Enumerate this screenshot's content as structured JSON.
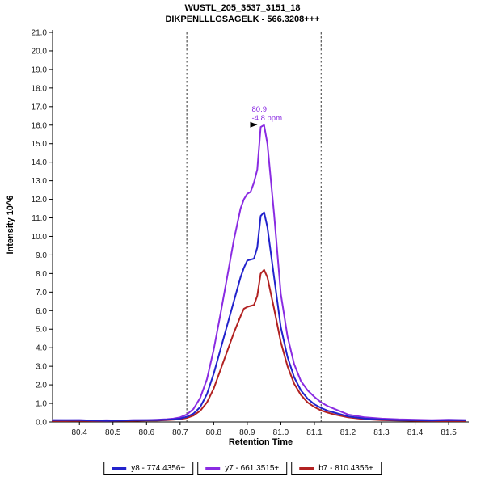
{
  "chart_data": {
    "type": "line",
    "title": "WUSTL_205_3537_3151_18",
    "subtitle": "DIKPENLLLGSAGELK - 566.3208+++",
    "xlabel": "Retention Time",
    "ylabel": "Intensity 10^6",
    "xlim": [
      80.32,
      81.56
    ],
    "ylim": [
      0,
      21
    ],
    "y_tick_step": 1,
    "x_ticks": [
      80.4,
      80.5,
      80.6,
      80.7,
      80.8,
      80.9,
      81.0,
      81.1,
      81.2,
      81.3,
      81.4,
      81.5
    ],
    "grid": false,
    "legend_position": "bottom",
    "axis_color": "#000000",
    "boundary_color": "#333333",
    "x": [
      80.32,
      80.36,
      80.4,
      80.44,
      80.48,
      80.52,
      80.56,
      80.6,
      80.63,
      80.66,
      80.68,
      80.7,
      80.72,
      80.74,
      80.76,
      80.78,
      80.8,
      80.82,
      80.84,
      80.86,
      80.88,
      80.89,
      80.9,
      80.91,
      80.92,
      80.93,
      80.94,
      80.95,
      80.96,
      80.98,
      81.0,
      81.02,
      81.04,
      81.06,
      81.08,
      81.1,
      81.12,
      81.14,
      81.16,
      81.2,
      81.25,
      81.3,
      81.35,
      81.4,
      81.45,
      81.5,
      81.55
    ],
    "series": [
      {
        "name": "y8",
        "legend_label": "y8 - 774.4356+",
        "color": "#2222cc",
        "values": [
          0.1,
          0.1,
          0.1,
          0.08,
          0.06,
          0.08,
          0.09,
          0.1,
          0.1,
          0.12,
          0.14,
          0.18,
          0.28,
          0.45,
          0.8,
          1.5,
          2.6,
          3.9,
          5.2,
          6.5,
          7.8,
          8.3,
          8.7,
          8.75,
          8.8,
          9.4,
          11.1,
          11.3,
          10.5,
          7.8,
          5.1,
          3.5,
          2.4,
          1.7,
          1.25,
          0.95,
          0.75,
          0.6,
          0.5,
          0.3,
          0.18,
          0.13,
          0.1,
          0.09,
          0.08,
          0.1,
          0.09
        ]
      },
      {
        "name": "y7",
        "legend_label": "y7 - 661.3515+",
        "color": "#8a2be2",
        "values": [
          0.1,
          0.09,
          0.1,
          0.08,
          0.09,
          0.08,
          0.1,
          0.1,
          0.12,
          0.15,
          0.18,
          0.25,
          0.4,
          0.7,
          1.3,
          2.3,
          3.9,
          5.8,
          7.8,
          9.8,
          11.5,
          12.0,
          12.3,
          12.4,
          12.9,
          13.6,
          15.9,
          16.0,
          15.0,
          11.2,
          6.9,
          4.6,
          3.1,
          2.2,
          1.7,
          1.35,
          1.05,
          0.85,
          0.7,
          0.4,
          0.25,
          0.18,
          0.14,
          0.12,
          0.1,
          0.12,
          0.1
        ]
      },
      {
        "name": "b7",
        "legend_label": "b7 - 810.4356+",
        "color": "#b22222",
        "values": [
          0.05,
          0.05,
          0.06,
          0.05,
          0.05,
          0.06,
          0.06,
          0.08,
          0.08,
          0.1,
          0.12,
          0.15,
          0.22,
          0.35,
          0.6,
          1.05,
          1.8,
          2.8,
          3.8,
          4.8,
          5.7,
          6.1,
          6.2,
          6.25,
          6.3,
          6.8,
          8.0,
          8.2,
          7.8,
          6.1,
          4.3,
          3.0,
          2.05,
          1.45,
          1.05,
          0.8,
          0.62,
          0.5,
          0.4,
          0.25,
          0.15,
          0.1,
          0.08,
          0.06,
          0.05,
          0.05,
          0.05
        ]
      }
    ],
    "integration_boundaries": {
      "left": 80.72,
      "right": 81.12
    },
    "peak_annotation": {
      "rt": "80.9",
      "mass_error": "-4.8 ppm",
      "x": 80.94,
      "y": 16.0,
      "color": "#8a2be2"
    },
    "baseline_mark": {
      "x1": 80.5,
      "x2": 80.56,
      "y": 0.05
    }
  }
}
